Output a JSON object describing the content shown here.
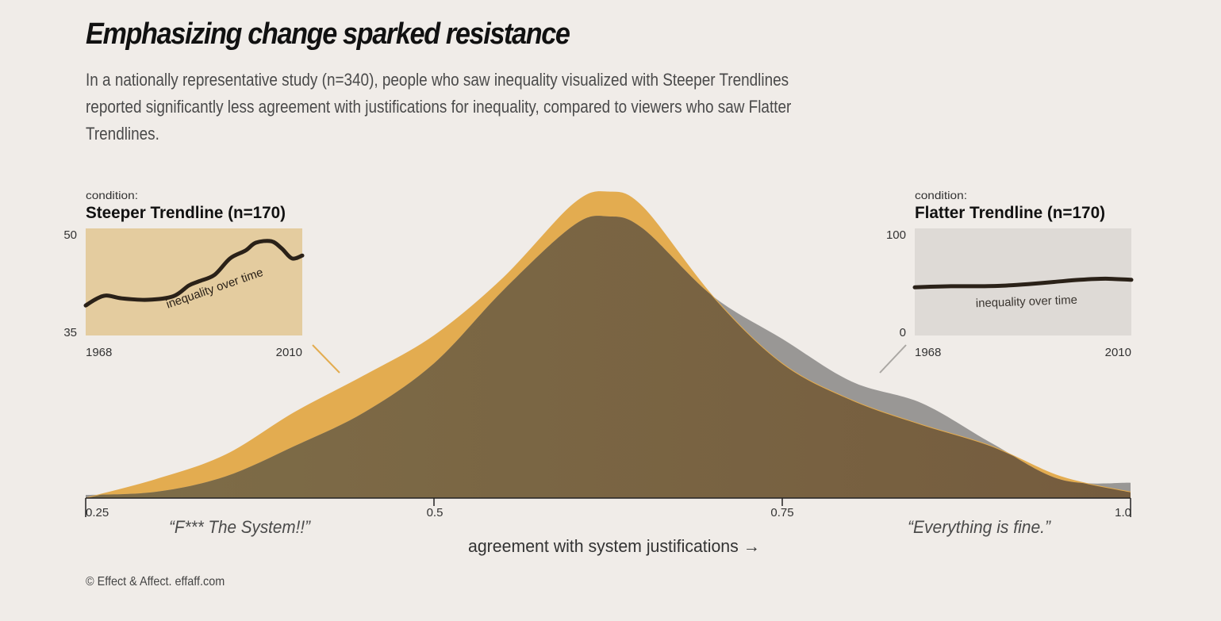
{
  "title": "Emphasizing change sparked resistance",
  "subtitle": "In a nationally representative study (n=340), people who saw inequality visualized with Steeper Trendlines reported significantly less agreement with justifications for inequality, compared to viewers who saw Flatter Trendlines.",
  "footer": "© Effect & Affect. effaff.com",
  "colors": {
    "background": "#f0ece8",
    "steeper": "#e3ac50",
    "flatter": "#999795",
    "overlap": "#7a6846",
    "steeper_inset_bg": "#e4cc9f",
    "flatter_inset_bg": "#dedad6",
    "inset_line": "#2a2118"
  },
  "chart_data": {
    "type": "area",
    "xlabel": "agreement with system justifications →",
    "xlim": [
      0.25,
      1.0
    ],
    "x_ticks": [
      "0.25",
      "0.5",
      "0.75",
      "1.0"
    ],
    "annotations": {
      "left_quote": "“F*** The System!!”",
      "right_quote": "“Everything is fine.”"
    },
    "series": [
      {
        "name": "Steeper Trendline (n=170)",
        "color": "#e3ac50",
        "x": [
          0.25,
          0.3,
          0.35,
          0.4,
          0.45,
          0.5,
          0.55,
          0.6,
          0.625,
          0.65,
          0.7,
          0.75,
          0.8,
          0.85,
          0.9,
          0.95,
          1.0
        ],
        "y": [
          0.0,
          0.06,
          0.14,
          0.28,
          0.4,
          0.53,
          0.72,
          0.96,
          1.0,
          0.95,
          0.66,
          0.44,
          0.32,
          0.24,
          0.17,
          0.07,
          0.02
        ]
      },
      {
        "name": "Flatter Trendline (n=170)",
        "color": "#999795",
        "x": [
          0.25,
          0.3,
          0.35,
          0.4,
          0.45,
          0.5,
          0.55,
          0.6,
          0.625,
          0.65,
          0.7,
          0.75,
          0.8,
          0.85,
          0.9,
          0.95,
          1.0
        ],
        "y": [
          0.01,
          0.02,
          0.07,
          0.17,
          0.28,
          0.44,
          0.68,
          0.89,
          0.92,
          0.88,
          0.66,
          0.52,
          0.38,
          0.31,
          0.18,
          0.06,
          0.05
        ]
      }
    ]
  },
  "insets": {
    "steeper": {
      "condition_label": "condition:",
      "name": "Steeper Trendline (n=170)",
      "y_max": "50",
      "y_min": "35",
      "x_start": "1968",
      "x_end": "2010",
      "line_label": "inequality over time",
      "x": [
        1968,
        1970,
        1972,
        1975,
        1980,
        1985,
        1988,
        1990,
        1993,
        1996,
        1999,
        2001,
        2004,
        2006,
        2008,
        2010
      ],
      "y": [
        39.2,
        40.1,
        40.6,
        40.2,
        40.0,
        40.5,
        42.0,
        42.6,
        43.5,
        45.8,
        46.9,
        48.0,
        48.2,
        47.2,
        45.8,
        46.2
      ]
    },
    "flatter": {
      "condition_label": "condition:",
      "name": "Flatter Trendline (n=170)",
      "y_max": "100",
      "y_min": "0",
      "x_start": "1968",
      "x_end": "2010",
      "line_label": "inequality over time",
      "x": [
        1968,
        1975,
        1980,
        1985,
        1990,
        1995,
        2000,
        2005,
        2010
      ],
      "y": [
        45,
        46,
        46,
        46.5,
        48,
        50,
        52,
        53,
        52
      ]
    }
  }
}
